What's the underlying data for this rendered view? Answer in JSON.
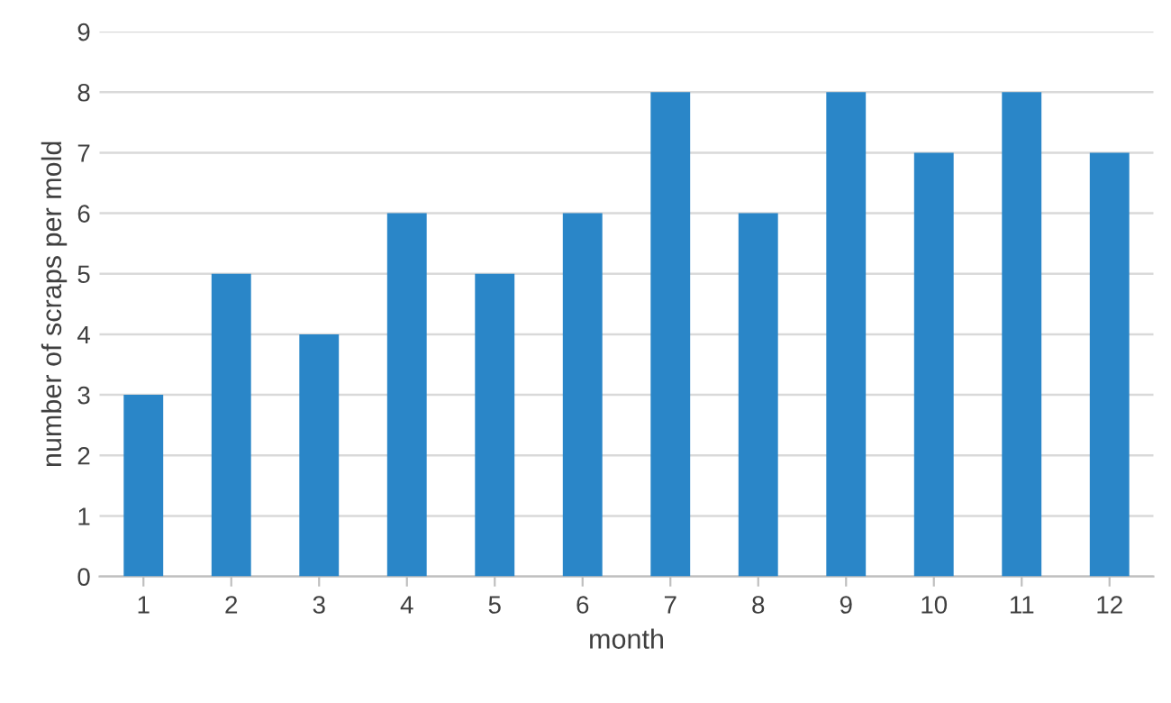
{
  "chart_data": {
    "type": "bar",
    "xlabel": "month",
    "ylabel": "number of scraps per mold",
    "categories": [
      "1",
      "2",
      "3",
      "4",
      "5",
      "6",
      "7",
      "8",
      "9",
      "10",
      "11",
      "12"
    ],
    "values": [
      3,
      5,
      4,
      6,
      5,
      6,
      8,
      6,
      8,
      7,
      8,
      7
    ],
    "color": "#2a86c8",
    "ylim": [
      0,
      9
    ],
    "yticks": [
      0,
      1,
      2,
      3,
      4,
      5,
      6,
      7,
      8,
      9
    ],
    "grid": "y",
    "legend": false
  }
}
